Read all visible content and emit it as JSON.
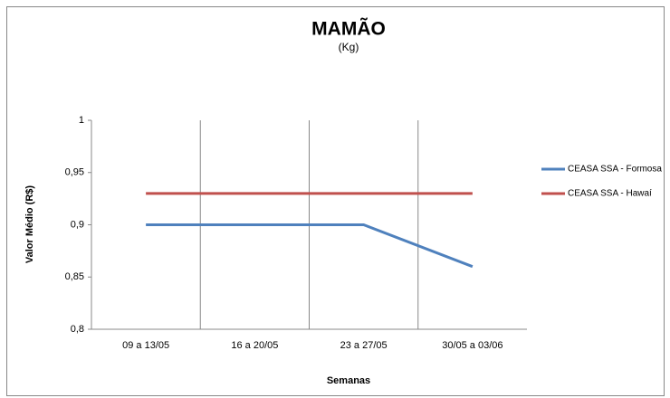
{
  "chart_data": {
    "type": "line",
    "title": "MAMÃO",
    "subtitle": "(Kg)",
    "x_label": "Semanas",
    "y_label": "Valor Médio (R$)",
    "categories": [
      "09 a 13/05",
      "16 a 20/05",
      "23 a 27/05",
      "30/05 a 03/06"
    ],
    "series": [
      {
        "name": "CEASA SSA - Formosa",
        "color": "#4f81bd",
        "values": [
          0.9,
          0.9,
          0.9,
          0.86
        ]
      },
      {
        "name": "CEASA SSA - Hawaí",
        "color": "#c0504d",
        "values": [
          0.93,
          0.93,
          0.93,
          0.93
        ]
      }
    ],
    "ylim": [
      0.8,
      1
    ],
    "yticks": [
      {
        "value": 0.8,
        "label": "0,8"
      },
      {
        "value": 0.85,
        "label": "0,85"
      },
      {
        "value": 0.9,
        "label": "0,9"
      },
      {
        "value": 0.95,
        "label": "0,95"
      },
      1
    ],
    "legend": "right"
  }
}
